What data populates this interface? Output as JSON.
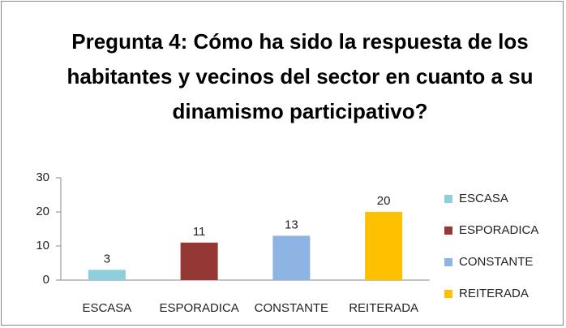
{
  "chart_data": {
    "type": "bar",
    "title": "Pregunta 4: Cómo ha sido la respuesta de los habitantes y vecinos del sector en cuanto a su dinamismo participativo?",
    "categories": [
      "ESCASA",
      "ESPORADICA",
      "CONSTANTE",
      "REITERADA"
    ],
    "values": [
      3,
      11,
      13,
      20
    ],
    "colors": [
      "#8dd0db",
      "#953735",
      "#8eb4e3",
      "#ffc000"
    ],
    "ylim": [
      0,
      30
    ],
    "yticks": [
      0,
      10,
      20,
      30
    ],
    "grid": false,
    "legend": "right"
  }
}
